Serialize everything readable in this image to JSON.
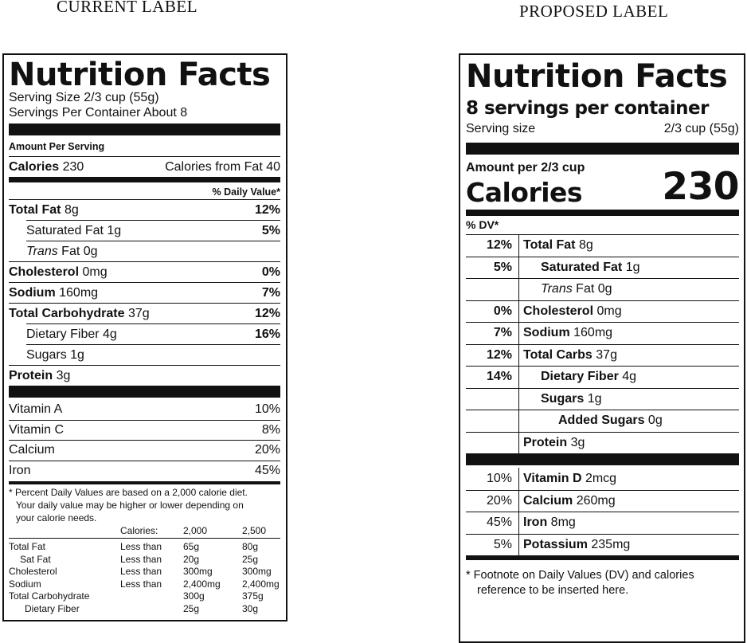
{
  "current": {
    "header": "CURRENT LABEL",
    "title": "Nutrition Facts",
    "serving_size": "Serving Size 2/3 cup (55g)",
    "servings_per_container": "Servings Per Container About 8",
    "amount_per_serving": "Amount Per Serving",
    "calories_label": "Calories",
    "calories_value": "230",
    "calories_from_fat": "Calories from Fat 40",
    "dv_header": "% Daily Value*",
    "nutrients": [
      {
        "name": "Total Fat",
        "amount": "8g",
        "dv": "12%"
      },
      {
        "name": "Saturated Fat",
        "amount": "1g",
        "dv": "5%"
      },
      {
        "name": "Trans",
        "amount": "Fat 0g",
        "dv": ""
      },
      {
        "name": "Cholesterol",
        "amount": "0mg",
        "dv": "0%"
      },
      {
        "name": "Sodium",
        "amount": "160mg",
        "dv": "7%"
      },
      {
        "name": "Total Carbohydrate",
        "amount": "37g",
        "dv": "12%"
      },
      {
        "name": "Dietary Fiber",
        "amount": "4g",
        "dv": "16%"
      },
      {
        "name": "Sugars",
        "amount": "1g",
        "dv": ""
      },
      {
        "name": "Protein",
        "amount": "3g",
        "dv": ""
      }
    ],
    "vitamins": [
      {
        "name": "Vitamin A",
        "dv": "10%"
      },
      {
        "name": "Vitamin C",
        "dv": "8%"
      },
      {
        "name": "Calcium",
        "dv": "20%"
      },
      {
        "name": "Iron",
        "dv": "45%"
      }
    ],
    "footnote_lines": [
      "* Percent Daily Values are based on a 2,000 calorie diet.",
      "Your daily value may be higher or lower depending on",
      "your calorie needs."
    ],
    "footnote_table": {
      "header": [
        "Calories:",
        "2,000",
        "2,500"
      ],
      "rows": [
        [
          "Total Fat",
          "Less than",
          "65g",
          "80g"
        ],
        [
          "Sat Fat",
          "Less than",
          "20g",
          "25g"
        ],
        [
          "Cholesterol",
          "Less than",
          "300mg",
          "300mg"
        ],
        [
          "Sodium",
          "Less than",
          "2,400mg",
          "2,400mg"
        ],
        [
          "Total Carbohydrate",
          "",
          "300g",
          "375g"
        ],
        [
          "Dietary Fiber",
          "",
          "25g",
          "30g"
        ]
      ]
    }
  },
  "proposed": {
    "header": "PROPOSED LABEL",
    "title": "Nutrition Facts",
    "servings": "8 servings per container",
    "serving_size_label": "Serving size",
    "serving_size_value": "2/3 cup (55g)",
    "amount_per": "Amount per 2/3 cup",
    "calories_label": "Calories",
    "calories_value": "230",
    "dv_header": "% DV*",
    "nutrients": [
      {
        "dv": "12%",
        "name": "Total Fat",
        "amount": "8g"
      },
      {
        "dv": "5%",
        "name": "Saturated Fat",
        "amount": "1g"
      },
      {
        "dv": "",
        "name": "Trans",
        "amount": "Fat 0g"
      },
      {
        "dv": "0%",
        "name": "Cholesterol",
        "amount": "0mg"
      },
      {
        "dv": "7%",
        "name": "Sodium",
        "amount": "160mg"
      },
      {
        "dv": "12%",
        "name": "Total Carbs",
        "amount": "37g"
      },
      {
        "dv": "14%",
        "name": "Dietary Fiber",
        "amount": "4g"
      },
      {
        "dv": "",
        "name": "Sugars",
        "amount": "1g"
      },
      {
        "dv": "",
        "name": "Added Sugars",
        "amount": "0g"
      },
      {
        "dv": "",
        "name": "Protein",
        "amount": "3g"
      }
    ],
    "vitamins": [
      {
        "dv": "10%",
        "name": "Vitamin D",
        "amount": "2mcg"
      },
      {
        "dv": "20%",
        "name": "Calcium",
        "amount": "260mg"
      },
      {
        "dv": "45%",
        "name": "Iron",
        "amount": "8mg"
      },
      {
        "dv": "5%",
        "name": "Potassium",
        "amount": "235mg"
      }
    ],
    "footnote_lines": [
      "* Footnote on Daily Values (DV) and calories",
      "reference to be inserted here."
    ]
  }
}
